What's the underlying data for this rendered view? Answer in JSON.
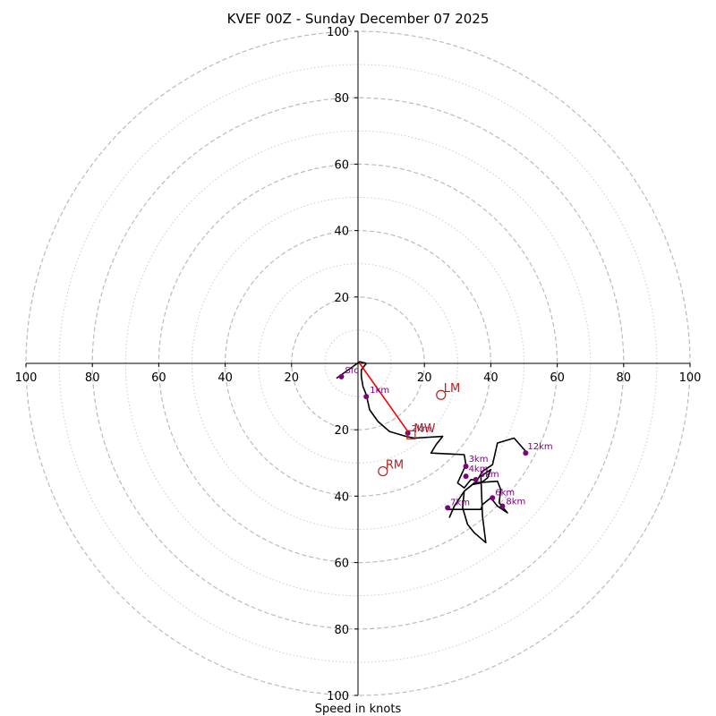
{
  "chart_data": {
    "type": "hodograph",
    "title": "KVEF 00Z - Sunday December 07 2025",
    "xlabel": "Speed in knots",
    "rings_solid": [
      20,
      40,
      60,
      80,
      100
    ],
    "rings_dotted": [
      10,
      30,
      50,
      70,
      90
    ],
    "axis_range": [
      -100,
      100
    ],
    "tick_labels_x": [
      "100",
      "80",
      "60",
      "40",
      "20",
      "20",
      "40",
      "60",
      "80",
      "100"
    ],
    "tick_values_x": [
      -100,
      -80,
      -60,
      -40,
      -20,
      20,
      40,
      60,
      80,
      100
    ],
    "tick_labels_y_top": [
      "100",
      "80",
      "60",
      "40",
      "20"
    ],
    "tick_values_y_top": [
      100,
      80,
      60,
      40,
      20
    ],
    "tick_labels_y_bottom": [
      "20",
      "40",
      "60",
      "80",
      "100"
    ],
    "tick_values_y_bottom": [
      -20,
      -40,
      -60,
      -80,
      -100
    ],
    "trace": {
      "color": "#000000",
      "points": [
        [
          -6.5,
          -4.5
        ],
        [
          0.5,
          0.5
        ],
        [
          2.5,
          0
        ],
        [
          1,
          -2
        ],
        [
          1,
          -4
        ],
        [
          1.5,
          -7
        ],
        [
          2.5,
          -9.5
        ],
        [
          3.5,
          -14
        ],
        [
          6,
          -17.5
        ],
        [
          9.5,
          -20.5
        ],
        [
          14.5,
          -22
        ],
        [
          17,
          -22.5
        ],
        [
          25.5,
          -22
        ],
        [
          23.5,
          -24.5
        ],
        [
          22,
          -27
        ],
        [
          32,
          -27.5
        ],
        [
          32.5,
          -30.5
        ],
        [
          30,
          -36
        ],
        [
          32,
          -37.5
        ],
        [
          34,
          -35
        ],
        [
          36,
          -35
        ],
        [
          37.5,
          -32.5
        ],
        [
          40.5,
          -30.5
        ],
        [
          42,
          -24
        ],
        [
          47,
          -22.5
        ],
        [
          50.5,
          -26.5
        ]
      ]
    },
    "trace_lower": {
      "color": "#000000",
      "points": [
        [
          27.5,
          -46.5
        ],
        [
          29,
          -43
        ],
        [
          32,
          -38.5
        ],
        [
          34.5,
          -36.5
        ],
        [
          37,
          -36
        ],
        [
          39,
          -34.5
        ],
        [
          40,
          -32
        ],
        [
          37,
          -34
        ],
        [
          37.5,
          -46
        ],
        [
          38.5,
          -54
        ],
        [
          35,
          -51
        ],
        [
          33,
          -48.5
        ],
        [
          31.5,
          -43.5
        ],
        [
          32,
          -38.5
        ],
        [
          35,
          -36
        ],
        [
          42,
          -35.5
        ],
        [
          43,
          -38
        ],
        [
          42.5,
          -42
        ],
        [
          45,
          -45
        ],
        [
          42,
          -43
        ],
        [
          40,
          -40.5
        ],
        [
          37.5,
          -42.5
        ],
        [
          37,
          -44
        ],
        [
          32.5,
          -44
        ],
        [
          27,
          -44
        ]
      ]
    },
    "shear_vector": {
      "color": "#ff0000",
      "from": [
        0.5,
        0
      ],
      "to": [
        15,
        -20.5
      ]
    },
    "height_markers": [
      {
        "label": "Sfc",
        "u": -5,
        "v": -4,
        "dx": 4,
        "dy": -4
      },
      {
        "label": "1km",
        "u": 2.5,
        "v": -10,
        "dx": 4,
        "dy": -4
      },
      {
        "label": "2km",
        "u": 15,
        "v": -21,
        "dx": 4,
        "dy": -2
      },
      {
        "label": "3km",
        "u": 32.5,
        "v": -31,
        "dx": 3,
        "dy": -5
      },
      {
        "label": "4km",
        "u": 32.5,
        "v": -34,
        "dx": 3,
        "dy": -5
      },
      {
        "label": "5km",
        "u": 35.5,
        "v": -35,
        "dx": 4,
        "dy": -3
      },
      {
        "label": "6km",
        "u": 40.5,
        "v": -40.5,
        "dx": 3,
        "dy": -3
      },
      {
        "label": "7km",
        "u": 27,
        "v": -43.5,
        "dx": 3,
        "dy": -3
      },
      {
        "label": "8km",
        "u": 43.5,
        "v": -43,
        "dx": 4,
        "dy": -2
      },
      {
        "label": "12km",
        "u": 50.5,
        "v": -27,
        "dx": 2,
        "dy": -4
      }
    ],
    "motion_markers": [
      {
        "label": "LM",
        "u": 25,
        "v": -9.5,
        "shape": "circle"
      },
      {
        "label": "RM",
        "u": 7.5,
        "v": -32.5,
        "shape": "circle"
      },
      {
        "label": "MW",
        "u": 16,
        "v": -21.5,
        "shape": "square"
      }
    ],
    "colors": {
      "grid": "#bbbbbb",
      "height_marker": "#800080",
      "motion_marker": "#b22222",
      "shear": "#ff0000",
      "axis": "#000000"
    }
  }
}
